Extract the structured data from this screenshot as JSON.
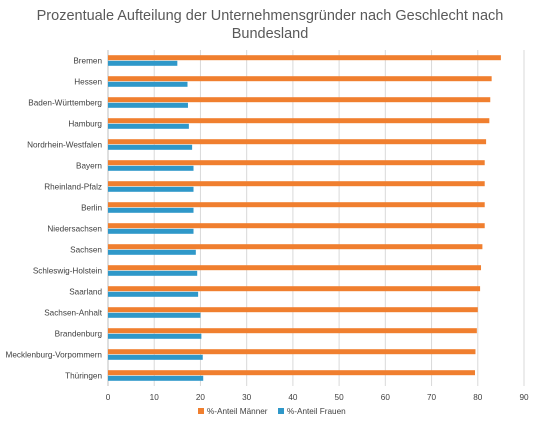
{
  "chart_data": {
    "type": "bar",
    "orientation": "horizontal",
    "title_lines": [
      "Prozentuale Aufteilung der Unternehmensgründer nach Geschlecht nach",
      "Bundesland"
    ],
    "categories": [
      "Bremen",
      "Hessen",
      "Baden-Württemberg",
      "Hamburg",
      "Nordrhein-Westfalen",
      "Bayern",
      "Rheinland-Pfalz",
      "Berlin",
      "Niedersachsen",
      "Sachsen",
      "Schleswig-Holstein",
      "Saarland",
      "Sachsen-Anhalt",
      "Brandenburg",
      "Mecklenburg-Vorpommern",
      "Thüringen"
    ],
    "series": [
      {
        "name": "%-Anteil Männer",
        "color": "#f07f2f",
        "values": [
          85,
          83,
          82.7,
          82.5,
          81.8,
          81.5,
          81.5,
          81.5,
          81.5,
          81,
          80.7,
          80.5,
          80,
          79.8,
          79.5,
          79.4
        ]
      },
      {
        "name": "%-Anteil Frauen",
        "color": "#2f98c9",
        "values": [
          15,
          17.2,
          17.3,
          17.5,
          18.2,
          18.5,
          18.5,
          18.5,
          18.5,
          19,
          19.3,
          19.5,
          20,
          20.2,
          20.5,
          20.6
        ]
      }
    ],
    "x_ticks": [
      0,
      10,
      20,
      30,
      40,
      50,
      60,
      70,
      80,
      90
    ],
    "xlim": [
      0,
      90
    ],
    "grid": true,
    "legend_position": "bottom"
  }
}
